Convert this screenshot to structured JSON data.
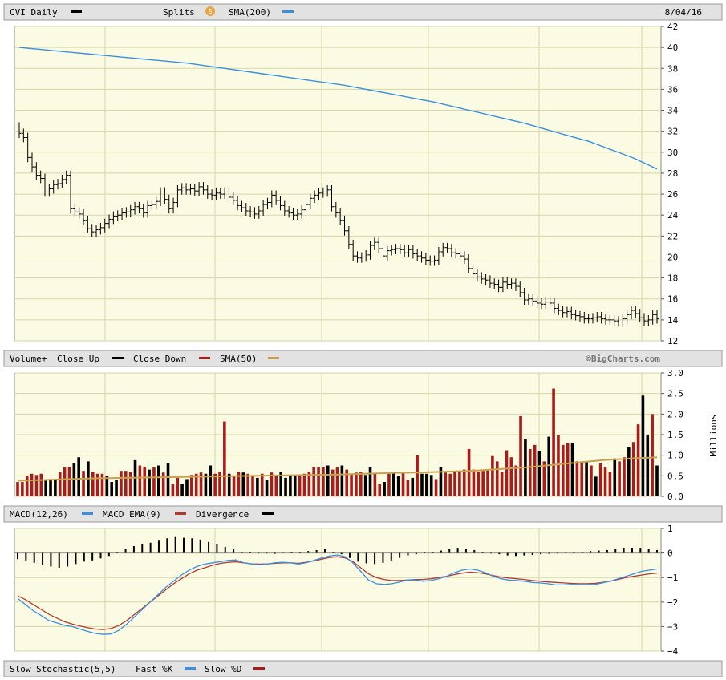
{
  "header": {
    "symbol_label": "CVI Daily",
    "splits_label": "Splits",
    "splits_badge": "S",
    "sma_label": "SMA(200)",
    "date_label": "8/04/16"
  },
  "volume_header": {
    "label": "Volume+",
    "close_up_label": "Close Up",
    "close_down_label": "Close Down",
    "sma_label": "SMA(50)",
    "credit": "©BigCharts.com",
    "unit_label": "Millions"
  },
  "macd_header": {
    "macd_label": "MACD(12,26)",
    "ema_label": "MACD EMA(9)",
    "divergence_label": "Divergence"
  },
  "stoch_header": {
    "label": "Slow Stochastic(5,5)",
    "fast_label": "Fast %K",
    "slow_label": "Slow %D"
  },
  "colors": {
    "price_bar": "#000000",
    "sma": "#3a8fe0",
    "vol_up": "#000000",
    "vol_down": "#a81c1c",
    "vol_sma": "#c8a050",
    "macd": "#3a8fe0",
    "macd_ema": "#b03a30",
    "divergence": "#000000",
    "panel_bg": "#fbfbe3",
    "grid": "#d6d6a8",
    "header_bg": "#e2e2e2"
  },
  "chart_data": [
    {
      "type": "ohlc",
      "title": "CVI Daily",
      "ylim": [
        12,
        42
      ],
      "yticks": [
        12,
        14,
        16,
        18,
        20,
        22,
        24,
        26,
        28,
        30,
        32,
        34,
        36,
        38,
        40,
        42
      ],
      "close": [
        31.8,
        31.4,
        29.5,
        28.6,
        27.8,
        27.5,
        26.2,
        26.5,
        26.9,
        27.0,
        27.4,
        27.8,
        24.6,
        24.3,
        24.1,
        23.5,
        22.7,
        22.4,
        22.6,
        22.8,
        23.2,
        23.6,
        23.9,
        24.0,
        24.2,
        24.3,
        24.5,
        24.8,
        24.6,
        24.2,
        24.9,
        25.0,
        25.3,
        26.2,
        25.5,
        24.6,
        25.2,
        26.4,
        26.6,
        26.4,
        26.5,
        26.3,
        26.7,
        26.4,
        26.0,
        25.9,
        26.1,
        26.0,
        26.2,
        25.7,
        25.4,
        24.9,
        24.7,
        24.4,
        24.3,
        24.1,
        24.4,
        25.0,
        25.2,
        25.9,
        25.4,
        24.9,
        24.4,
        24.2,
        24.0,
        24.1,
        24.5,
        25.0,
        25.6,
        25.9,
        26.1,
        26.2,
        26.4,
        24.8,
        24.2,
        23.5,
        22.5,
        21.2,
        20.1,
        19.9,
        20.0,
        20.2,
        21.1,
        21.4,
        20.8,
        20.1,
        20.6,
        20.7,
        20.8,
        20.7,
        20.4,
        20.7,
        20.3,
        20.1,
        19.9,
        19.7,
        19.6,
        19.7,
        20.5,
        20.9,
        20.8,
        20.4,
        20.3,
        20.1,
        19.8,
        18.9,
        18.4,
        18.1,
        17.9,
        17.8,
        17.5,
        17.4,
        17.1,
        17.6,
        17.4,
        17.5,
        17.2,
        16.6,
        15.9,
        16.0,
        15.8,
        15.6,
        15.5,
        15.7,
        15.6,
        15.1,
        14.9,
        14.7,
        14.8,
        14.5,
        14.4,
        14.3,
        14.1,
        14.1,
        14.2,
        14.3,
        14.1,
        14.0,
        14.0,
        13.9,
        13.8,
        14.1,
        14.5,
        14.9,
        14.6,
        14.2,
        13.9,
        14.0,
        14.5,
        14.1
      ]
    },
    {
      "type": "line",
      "title": "SMA(200)",
      "ylim": [
        12,
        42
      ],
      "values": [
        40.0,
        39.9,
        39.8,
        39.7,
        39.6,
        39.5,
        39.4,
        39.3,
        39.2,
        39.1,
        39.0,
        38.9,
        38.8,
        38.7,
        38.6,
        38.5,
        38.35,
        38.2,
        38.05,
        37.9,
        37.75,
        37.6,
        37.45,
        37.3,
        37.15,
        37.0,
        36.85,
        36.7,
        36.55,
        36.4,
        36.2,
        36.0,
        35.8,
        35.6,
        35.4,
        35.2,
        35.0,
        34.8,
        34.55,
        34.3,
        34.05,
        33.8,
        33.55,
        33.3,
        33.05,
        32.8,
        32.5,
        32.2,
        31.9,
        31.6,
        31.3,
        31.0,
        30.6,
        30.2,
        29.8,
        29.4,
        28.9,
        28.4
      ],
      "x_start_index": 0,
      "x_end_index": 150
    },
    {
      "type": "bar",
      "title": "Volume+",
      "ylabel": "Millions",
      "ylim": [
        0,
        3.0
      ],
      "yticks": [
        0.0,
        0.5,
        1.0,
        1.5,
        2.0,
        2.5,
        3.0
      ],
      "values": [
        0.35,
        0.35,
        0.5,
        0.55,
        0.52,
        0.55,
        0.38,
        0.4,
        0.42,
        0.6,
        0.7,
        0.72,
        0.8,
        0.95,
        0.62,
        0.85,
        0.6,
        0.55,
        0.55,
        0.5,
        0.35,
        0.4,
        0.62,
        0.62,
        0.6,
        0.88,
        0.75,
        0.72,
        0.65,
        0.7,
        0.75,
        0.58,
        0.8,
        0.3,
        0.45,
        0.3,
        0.42,
        0.52,
        0.55,
        0.58,
        0.55,
        0.75,
        0.55,
        0.6,
        1.82,
        0.55,
        0.5,
        0.6,
        0.58,
        0.55,
        0.5,
        0.45,
        0.55,
        0.4,
        0.58,
        0.52,
        0.6,
        0.45,
        0.5,
        0.52,
        0.5,
        0.55,
        0.6,
        0.72,
        0.72,
        0.72,
        0.75,
        0.65,
        0.7,
        0.75,
        0.65,
        0.55,
        0.58,
        0.6,
        0.52,
        0.72,
        0.55,
        0.3,
        0.35,
        0.55,
        0.6,
        0.5,
        0.58,
        0.4,
        0.45,
        1.0,
        0.55,
        0.55,
        0.52,
        0.42,
        0.72,
        0.58,
        0.55,
        0.6,
        0.62,
        0.65,
        1.15,
        0.65,
        0.6,
        0.62,
        0.65,
        0.98,
        0.85,
        0.6,
        1.12,
        0.95,
        0.75,
        1.95,
        1.4,
        1.15,
        1.25,
        1.1,
        0.85,
        1.45,
        2.62,
        1.48,
        1.25,
        1.3,
        1.3,
        0.85,
        0.85,
        0.85,
        0.75,
        0.48,
        0.8,
        0.7,
        0.6,
        0.92,
        0.85,
        0.95,
        1.2,
        1.32,
        1.75,
        2.45,
        1.48,
        2.0,
        0.75
      ],
      "close_up": [
        false,
        false,
        false,
        false,
        false,
        false,
        true,
        true,
        true,
        false,
        false,
        false,
        true,
        true,
        false,
        true,
        false,
        false,
        false,
        true,
        true,
        true,
        false,
        false,
        false,
        true,
        false,
        false,
        true,
        false,
        true,
        false,
        true,
        false,
        false,
        true,
        true,
        false,
        false,
        false,
        true,
        true,
        false,
        false,
        false,
        true,
        false,
        false,
        true,
        false,
        false,
        true,
        false,
        true,
        false,
        false,
        true,
        true,
        true,
        true,
        false,
        false,
        false,
        false,
        false,
        false,
        true,
        false,
        false,
        true,
        false,
        false,
        false,
        false,
        true,
        true,
        false,
        false,
        true,
        false,
        true,
        true,
        false,
        false,
        true,
        false,
        true,
        true,
        true,
        false,
        true,
        false,
        false,
        false,
        false,
        false,
        false,
        false,
        false,
        false,
        false,
        false,
        false,
        false,
        false,
        false,
        false,
        false,
        true,
        false,
        false,
        true,
        false,
        true,
        false,
        false,
        false,
        false,
        true,
        false,
        false,
        true,
        false,
        true,
        false,
        false,
        false,
        true,
        false,
        false,
        true,
        false,
        false,
        true,
        true,
        false,
        true,
        false
      ],
      "sma50": [
        0.38,
        0.4,
        0.42,
        0.44,
        0.45,
        0.46,
        0.47,
        0.48,
        0.49,
        0.5,
        0.51,
        0.52,
        0.53,
        0.55,
        0.57,
        0.58,
        0.6,
        0.62,
        0.66,
        0.7,
        0.76,
        0.82,
        0.88,
        0.92,
        0.95
      ]
    },
    {
      "type": "line",
      "title": "MACD(12,26)",
      "ylim": [
        -4,
        1
      ],
      "yticks": [
        -4,
        -3,
        -2,
        -1,
        0,
        1
      ],
      "macd": [
        -1.85,
        -2.1,
        -2.35,
        -2.55,
        -2.75,
        -2.85,
        -2.95,
        -3.0,
        -3.1,
        -3.2,
        -3.28,
        -3.32,
        -3.3,
        -3.15,
        -2.9,
        -2.6,
        -2.3,
        -2.0,
        -1.7,
        -1.4,
        -1.15,
        -0.9,
        -0.7,
        -0.55,
        -0.45,
        -0.4,
        -0.35,
        -0.3,
        -0.28,
        -0.4,
        -0.45,
        -0.48,
        -0.45,
        -0.4,
        -0.38,
        -0.4,
        -0.45,
        -0.4,
        -0.3,
        -0.2,
        -0.12,
        -0.08,
        -0.15,
        -0.4,
        -0.75,
        -1.1,
        -1.25,
        -1.28,
        -1.25,
        -1.18,
        -1.1,
        -1.1,
        -1.15,
        -1.12,
        -1.05,
        -0.95,
        -0.8,
        -0.7,
        -0.65,
        -0.7,
        -0.8,
        -0.95,
        -1.05,
        -1.1,
        -1.12,
        -1.15,
        -1.2,
        -1.22,
        -1.25,
        -1.3,
        -1.3,
        -1.28,
        -1.3,
        -1.3,
        -1.28,
        -1.22,
        -1.15,
        -1.05,
        -0.95,
        -0.85,
        -0.75,
        -0.7,
        -0.65
      ],
      "ema": [
        -1.75,
        -1.9,
        -2.1,
        -2.3,
        -2.5,
        -2.65,
        -2.8,
        -2.9,
        -2.98,
        -3.05,
        -3.1,
        -3.12,
        -3.08,
        -2.95,
        -2.75,
        -2.5,
        -2.25,
        -2.0,
        -1.75,
        -1.5,
        -1.25,
        -1.05,
        -0.85,
        -0.7,
        -0.6,
        -0.5,
        -0.42,
        -0.38,
        -0.36,
        -0.4,
        -0.44,
        -0.45,
        -0.44,
        -0.42,
        -0.4,
        -0.4,
        -0.42,
        -0.38,
        -0.32,
        -0.25,
        -0.18,
        -0.15,
        -0.2,
        -0.35,
        -0.6,
        -0.85,
        -1.0,
        -1.08,
        -1.12,
        -1.12,
        -1.1,
        -1.08,
        -1.08,
        -1.05,
        -1.0,
        -0.95,
        -0.88,
        -0.82,
        -0.78,
        -0.8,
        -0.85,
        -0.92,
        -0.98,
        -1.02,
        -1.05,
        -1.08,
        -1.12,
        -1.15,
        -1.18,
        -1.2,
        -1.22,
        -1.24,
        -1.25,
        -1.25,
        -1.24,
        -1.2,
        -1.15,
        -1.08,
        -1.0,
        -0.95,
        -0.9,
        -0.85,
        -0.82
      ],
      "divergence": [
        -0.25,
        -0.3,
        -0.4,
        -0.5,
        -0.55,
        -0.6,
        -0.55,
        -0.45,
        -0.35,
        -0.3,
        -0.22,
        -0.12,
        0.05,
        0.15,
        0.28,
        0.35,
        0.42,
        0.5,
        0.6,
        0.65,
        0.62,
        0.6,
        0.55,
        0.45,
        0.35,
        0.25,
        0.15,
        0.05,
        0.02,
        -0.02,
        -0.02,
        -0.03,
        -0.01,
        0.02,
        0.05,
        0.08,
        0.12,
        0.15,
        0.05,
        -0.05,
        -0.2,
        -0.35,
        -0.42,
        -0.45,
        -0.4,
        -0.3,
        -0.2,
        -0.1,
        -0.05,
        0.02,
        0.05,
        0.1,
        0.15,
        0.18,
        0.15,
        0.12,
        0.05,
        -0.02,
        -0.05,
        -0.1,
        -0.12,
        -0.1,
        -0.08,
        -0.05,
        -0.03,
        -0.02,
        -0.01,
        0.02,
        0.05,
        0.08,
        0.1,
        0.12,
        0.15,
        0.18,
        0.2,
        0.18,
        0.15,
        0.12
      ]
    }
  ]
}
